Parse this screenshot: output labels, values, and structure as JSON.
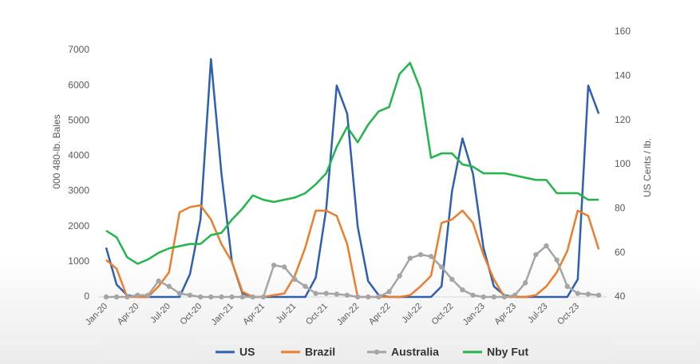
{
  "chart_data": {
    "type": "line",
    "y_label": "000 480-lb. Bales",
    "y2_label": "US Cents / lb.",
    "categories": [
      "Jan-20",
      null,
      null,
      "Apr-20",
      null,
      null,
      "Jul-20",
      null,
      null,
      "Oct-20",
      null,
      null,
      "Jan-21",
      null,
      null,
      "Apr-21",
      null,
      null,
      "Jul-21",
      null,
      null,
      "Oct-21",
      null,
      null,
      "Jan-22",
      null,
      null,
      "Apr-22",
      null,
      null,
      "Jul-22",
      null,
      null,
      "Oct-22",
      null,
      null,
      "Jan-23",
      null,
      null,
      "Apr-23",
      null,
      null,
      "Jul-23",
      null,
      null,
      "Oct-23",
      null,
      null
    ],
    "series": [
      {
        "name": "US",
        "color": "#2e5fb0",
        "values": [
          1400,
          350,
          50,
          0,
          0,
          0,
          0,
          0,
          650,
          2200,
          6750,
          3500,
          1000,
          100,
          0,
          0,
          0,
          0,
          0,
          0,
          550,
          2500,
          6000,
          5200,
          2000,
          450,
          50,
          0,
          0,
          0,
          0,
          0,
          300,
          3000,
          4500,
          3500,
          1400,
          300,
          50,
          0,
          0,
          0,
          0,
          0,
          0,
          500,
          6000,
          5200
        ]
      },
      {
        "name": "Brazil",
        "color": "#ee7d2b",
        "values": [
          1050,
          800,
          0,
          0,
          0,
          300,
          700,
          2400,
          2550,
          2600,
          2200,
          1500,
          1000,
          150,
          0,
          0,
          50,
          100,
          600,
          1400,
          2450,
          2450,
          2300,
          1500,
          0,
          0,
          0,
          0,
          0,
          50,
          300,
          600,
          2100,
          2200,
          2450,
          2100,
          1200,
          500,
          0,
          0,
          0,
          50,
          300,
          700,
          1300,
          2450,
          2300,
          1350
        ]
      },
      {
        "name": "Australia",
        "color": "#a5a5a5",
        "markers": true,
        "values": [
          0,
          0,
          0,
          50,
          50,
          450,
          300,
          100,
          50,
          0,
          0,
          0,
          0,
          0,
          0,
          0,
          900,
          850,
          500,
          300,
          100,
          100,
          80,
          50,
          0,
          0,
          0,
          150,
          600,
          1100,
          1200,
          1150,
          850,
          500,
          200,
          50,
          0,
          0,
          0,
          50,
          400,
          1200,
          1450,
          1050,
          300,
          100,
          80,
          50
        ]
      },
      {
        "name": "Nby Fut",
        "color": "#22b64a",
        "axis": "y2",
        "values": [
          70,
          67,
          58,
          55,
          57,
          60,
          62,
          63,
          64,
          64,
          68,
          69,
          75,
          80,
          86,
          84,
          83,
          84,
          85,
          87,
          91,
          96,
          108,
          117,
          110,
          118,
          124,
          126,
          141,
          146,
          134,
          103,
          105,
          105,
          100,
          99,
          96,
          96,
          96,
          95,
          94,
          93,
          93,
          87,
          87,
          87,
          84,
          84
        ]
      }
    ],
    "ylim": [
      0,
      7000
    ],
    "yticks": [
      0,
      1000,
      2000,
      3000,
      4000,
      5000,
      6000,
      7000
    ],
    "y2lim": [
      40,
      160
    ],
    "y2ticks": [
      40,
      60,
      80,
      100,
      120,
      140,
      160
    ],
    "grid": false,
    "legend": "bottom"
  }
}
